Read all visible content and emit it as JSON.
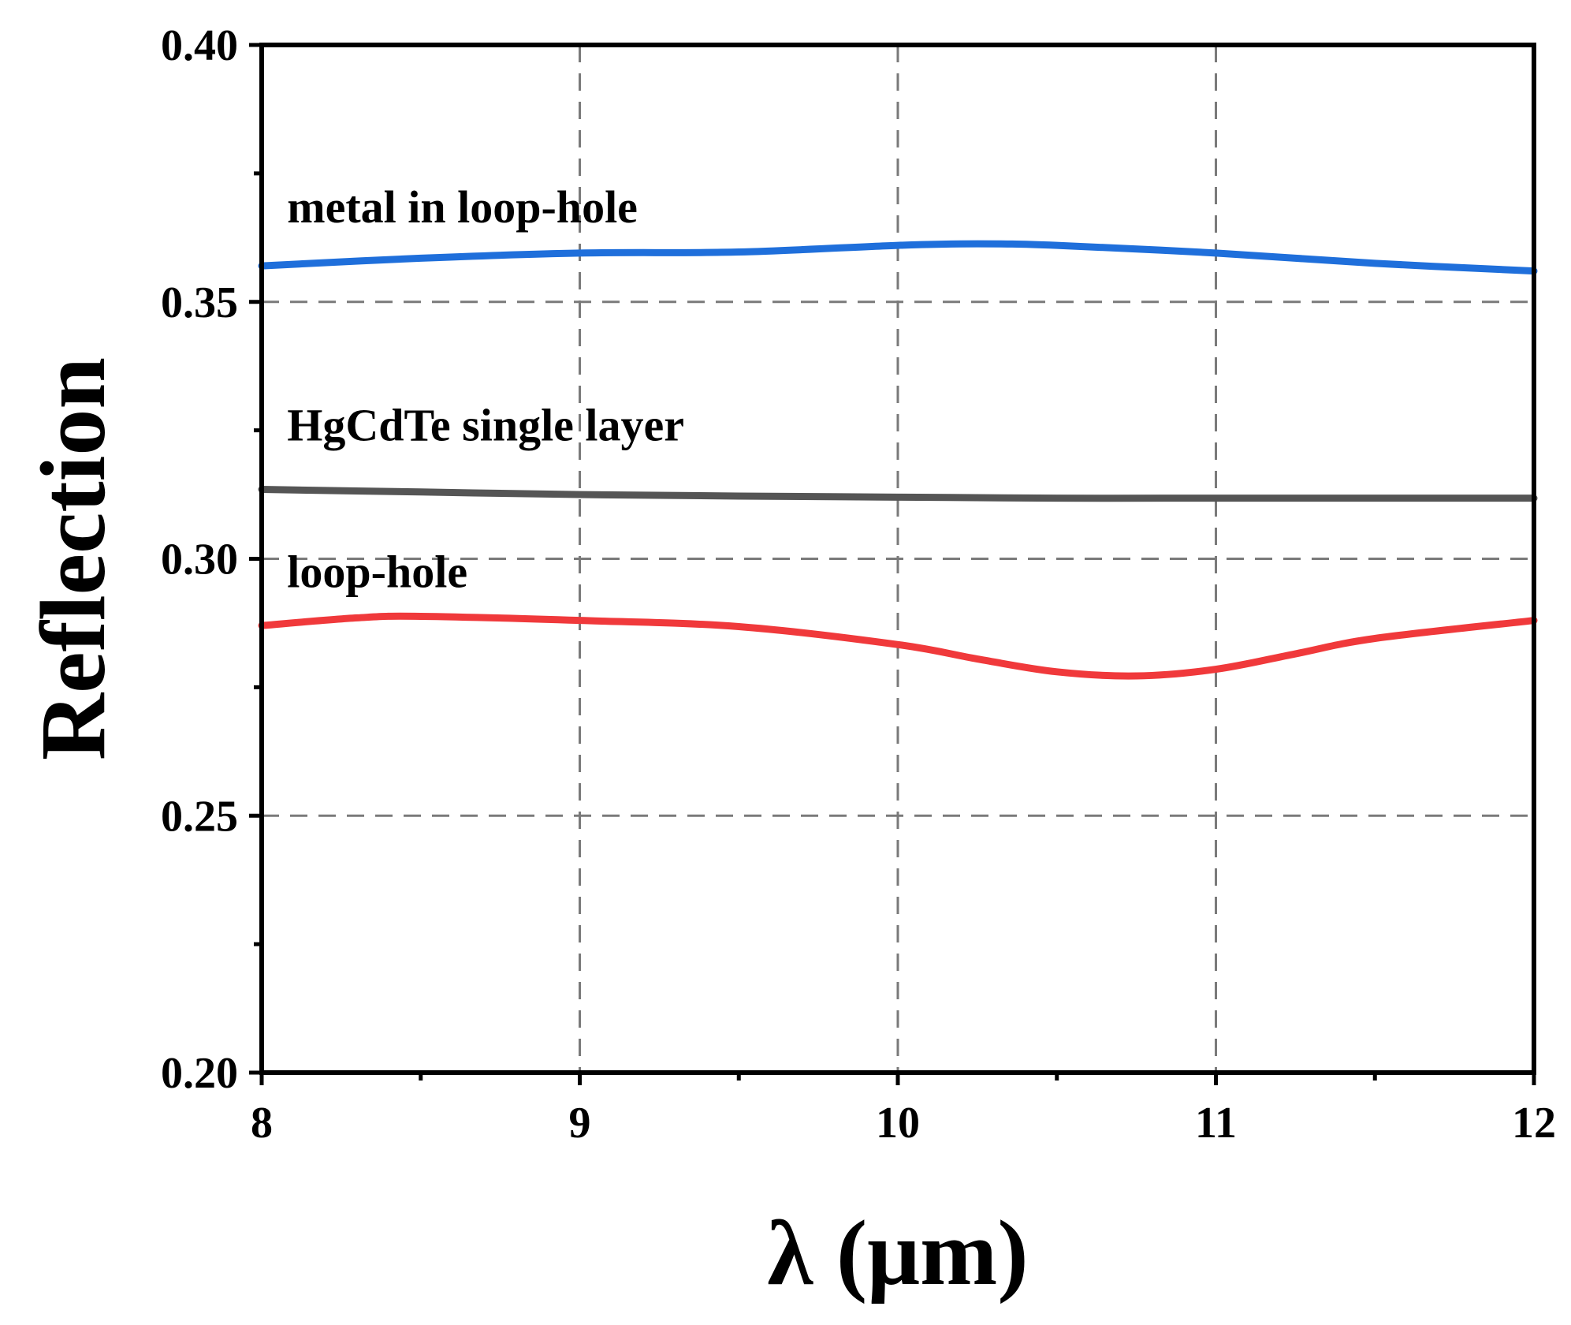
{
  "chart_data": {
    "type": "line",
    "xlabel": "λ (μm)",
    "ylabel": "Reflection",
    "xlim": [
      8,
      12
    ],
    "ylim": [
      0.2,
      0.4
    ],
    "x_ticks": [
      8,
      9,
      10,
      11,
      12
    ],
    "x_tick_labels": [
      "8",
      "9",
      "10",
      "11",
      "12"
    ],
    "y_ticks": [
      0.2,
      0.25,
      0.3,
      0.35,
      0.4
    ],
    "y_tick_labels": [
      "0.20",
      "0.25",
      "0.30",
      "0.35",
      "0.40"
    ],
    "grid": true,
    "series": [
      {
        "name": "metal in loop-hole",
        "color": "#1f6fdb",
        "x": [
          8.0,
          8.5,
          9.0,
          9.5,
          10.0,
          10.25,
          10.5,
          11.0,
          11.5,
          12.0
        ],
        "y": [
          0.357,
          0.3585,
          0.3595,
          0.3597,
          0.361,
          0.3613,
          0.361,
          0.3595,
          0.3575,
          0.356
        ]
      },
      {
        "name": "HgCdTe single layer",
        "color": "#555555",
        "x": [
          8.0,
          8.5,
          9.0,
          9.5,
          10.0,
          10.5,
          11.0,
          11.5,
          12.0
        ],
        "y": [
          0.3135,
          0.313,
          0.3125,
          0.3122,
          0.312,
          0.3118,
          0.3118,
          0.3118,
          0.3118
        ]
      },
      {
        "name": "loop-hole",
        "color": "#f0393b",
        "x": [
          8.0,
          8.3,
          8.5,
          9.0,
          9.5,
          10.0,
          10.25,
          10.5,
          10.75,
          11.0,
          11.25,
          11.5,
          12.0
        ],
        "y": [
          0.287,
          0.2885,
          0.2888,
          0.288,
          0.2868,
          0.2833,
          0.2805,
          0.278,
          0.2772,
          0.2785,
          0.2815,
          0.2845,
          0.288
        ]
      }
    ],
    "annotations": [
      {
        "text": "metal in loop-hole",
        "x": 8.08,
        "y": 0.3655
      },
      {
        "text": "HgCdTe single layer",
        "x": 8.08,
        "y": 0.323
      },
      {
        "text": "loop-hole",
        "x": 8.08,
        "y": 0.2945
      }
    ]
  }
}
